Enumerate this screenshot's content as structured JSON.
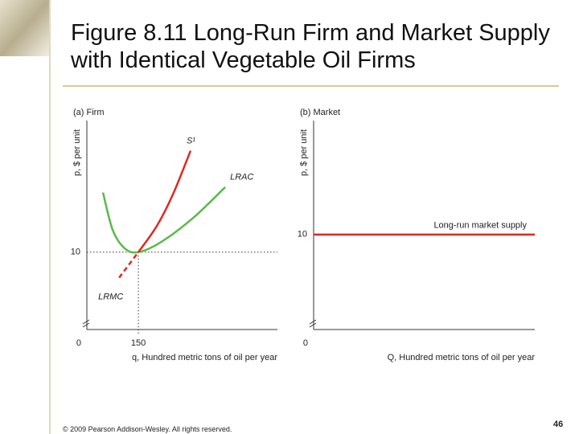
{
  "slide": {
    "title": "Figure 8.11 Long-Run Firm and Market Supply with Identical Vegetable Oil Firms",
    "footer": "© 2009 Pearson Addison-Wesley. All rights reserved.",
    "page": "46"
  },
  "chart_data": [
    {
      "type": "line",
      "title": "(a) Firm",
      "y_label": "p, $ per unit",
      "x_label": "q, Hundred metric tons of oil per year",
      "xlim": [
        0,
        555
      ],
      "ylim": [
        0,
        27
      ],
      "xticks": [
        150
      ],
      "yticks": [
        0,
        10
      ],
      "series": [
        {
          "name": "LRAC",
          "color": "#5cb84a",
          "x": [
            47,
            75,
            110,
            150,
            216,
            309,
            403
          ],
          "values": [
            17.7,
            12.9,
            10.5,
            10,
            11.3,
            14.4,
            18.4
          ]
        },
        {
          "name": "S¹",
          "color": "#e0281e",
          "x": [
            150,
            204,
            251,
            302
          ],
          "values": [
            10,
            13.4,
            17.5,
            23.1
          ]
        },
        {
          "name": "LRMC",
          "color": "#e0281e",
          "dash": true,
          "x": [
            94,
            150
          ],
          "values": [
            6.7,
            10
          ]
        }
      ]
    },
    {
      "type": "line",
      "title": "(b) Market",
      "y_label": "p, $ per unit",
      "x_label": "Q, Hundred metric tons of oil per year",
      "ylim": [
        0,
        22
      ],
      "yticks": [
        0,
        10
      ],
      "series": [
        {
          "name": "Long-run market supply",
          "color": "#e0281e",
          "values": [
            10,
            10
          ]
        }
      ]
    }
  ]
}
